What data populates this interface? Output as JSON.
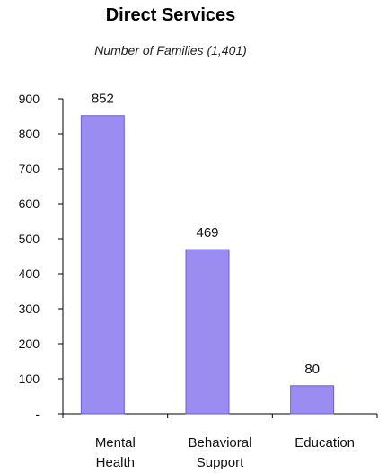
{
  "chart_data": {
    "type": "bar",
    "title": "Direct Services",
    "subtitle": "Number of Families  (1,401)",
    "categories": [
      [
        "Mental",
        "Health"
      ],
      [
        "Behavioral",
        "Support"
      ],
      [
        "Education"
      ]
    ],
    "values": [
      852,
      469,
      80
    ],
    "data_labels": [
      "852",
      "469",
      "80"
    ],
    "y_ticks": [
      0,
      100,
      200,
      300,
      400,
      500,
      600,
      700,
      800,
      900
    ],
    "y_tick_labels": [
      "-",
      "100",
      "200",
      "300",
      "400",
      "500",
      "600",
      "700",
      "800",
      "900"
    ],
    "ylim": [
      0,
      900
    ],
    "grid": false,
    "legend": false,
    "bar_color": "#9b8cf2",
    "bar_edge_color": "#6b5fd0"
  }
}
